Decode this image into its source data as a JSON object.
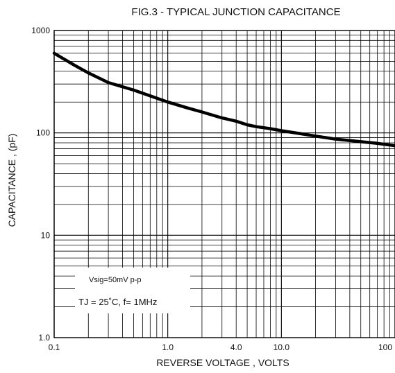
{
  "chart_data": {
    "type": "line",
    "title": "FIG.3 - TYPICAL JUNCTION CAPACITANCE",
    "xlabel": "REVERSE VOLTAGE , VOLTS",
    "ylabel": "CAPACITANCE , (pF)",
    "x_scale": "log",
    "y_scale": "log",
    "xlim": [
      0.1,
      100
    ],
    "ylim": [
      1.0,
      1000
    ],
    "grid": true,
    "x_ticks": [
      {
        "value": 0.1,
        "label": "0.1"
      },
      {
        "value": 1,
        "label": "1.0"
      },
      {
        "value": 4,
        "label": "4.0"
      },
      {
        "value": 10,
        "label": "10.0"
      },
      {
        "value": 100,
        "label": "100"
      }
    ],
    "y_ticks": [
      {
        "value": 1,
        "label": "1.0"
      },
      {
        "value": 10,
        "label": "10"
      },
      {
        "value": 100,
        "label": "100"
      },
      {
        "value": 1000,
        "label": "1000"
      }
    ],
    "series": [
      {
        "x": [
          0.1,
          0.15,
          0.2,
          0.3,
          0.5,
          0.7,
          1.0,
          1.5,
          2.0,
          3.0,
          4.0,
          5.0,
          6.0,
          8.0,
          10.0,
          15.0,
          20.0,
          30.0,
          50.0,
          70.0,
          100.0
        ],
        "y": [
          600,
          460,
          385,
          310,
          262,
          230,
          200,
          175,
          160,
          140,
          130,
          120,
          115,
          110,
          105,
          98,
          93,
          87,
          82,
          79,
          75
        ]
      }
    ],
    "annotations": [
      "Vsig=50mV p-p",
      "TJ = 25˚C,   f= 1MHz"
    ]
  }
}
